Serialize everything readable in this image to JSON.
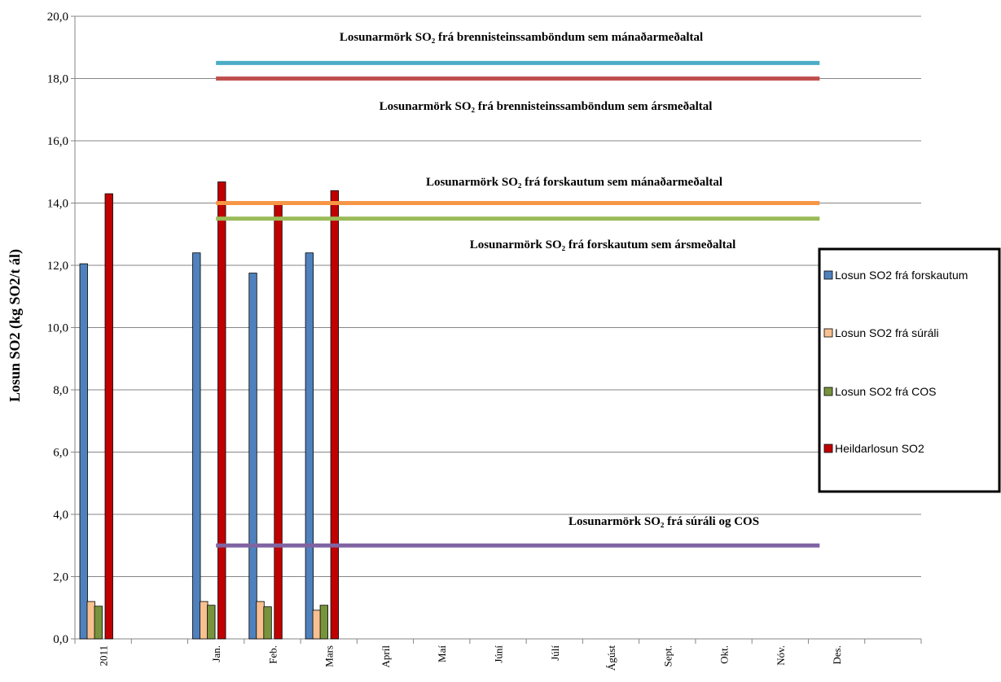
{
  "chart_data": {
    "type": "bar",
    "y_axis_label": "Losun SO2 (kg SO2/t ál)",
    "categories": [
      "2011",
      null,
      "Jan.",
      "Feb.",
      "Mars",
      "Apríl",
      "Maí",
      "Júní",
      "Júlí",
      "Ágúst",
      "Sept.",
      "Okt.",
      "Nóv.",
      "Des.",
      null
    ],
    "series": [
      {
        "name": "Losun SO2 frá forskautum",
        "color": "#4f81bd",
        "values": [
          12.05,
          null,
          12.4,
          11.75,
          12.4,
          null,
          null,
          null,
          null,
          null,
          null,
          null,
          null,
          null,
          null
        ]
      },
      {
        "name": "Losun SO2 frá súráli",
        "color": "#fac090",
        "values": [
          1.2,
          null,
          1.2,
          1.2,
          0.92,
          null,
          null,
          null,
          null,
          null,
          null,
          null,
          null,
          null,
          null
        ]
      },
      {
        "name": "Losun SO2 frá COS",
        "color": "#77933c",
        "values": [
          1.05,
          null,
          1.08,
          1.03,
          1.08,
          null,
          null,
          null,
          null,
          null,
          null,
          null,
          null,
          null,
          null
        ]
      },
      {
        "name": "Heildarlosun SO2",
        "color": "#c00000",
        "values": [
          14.3,
          null,
          14.68,
          13.95,
          14.4,
          null,
          null,
          null,
          null,
          null,
          null,
          null,
          null,
          null,
          null
        ]
      }
    ],
    "limit_lines": [
      {
        "label": "Losunarmörk SO₂ frá brennisteinssamböndum sem mánaðarmeðaltal",
        "value": 18.5,
        "color": "#4bacc6"
      },
      {
        "label": "Losunarmörk SO₂ frá brennisteinssamböndum sem ársmeðaltal",
        "value": 18.0,
        "color": "#c0504d"
      },
      {
        "label": "Losunarmörk SO₂ frá forskautum sem mánaðarmeðaltal",
        "value": 14.0,
        "color": "#f79646"
      },
      {
        "label": "Losunarmörk SO₂ frá forskautum sem ársmeðaltal",
        "value": 13.5,
        "color": "#9bbb59"
      },
      {
        "label": "Losunarmörk SO₂ frá súráli og COS",
        "value": 3.0,
        "color": "#8064a2"
      }
    ],
    "ylim": [
      0,
      20
    ],
    "yticks": [
      {
        "value": 0,
        "label": "0,0"
      },
      {
        "value": 2,
        "label": "2,0"
      },
      {
        "value": 4,
        "label": "4,0"
      },
      {
        "value": 6,
        "label": "6,0"
      },
      {
        "value": 8,
        "label": "8,0"
      },
      {
        "value": 10,
        "label": "10,0"
      },
      {
        "value": 12,
        "label": "12,0"
      },
      {
        "value": 14,
        "label": "14,0"
      },
      {
        "value": 16,
        "label": "16,0"
      },
      {
        "value": 18,
        "label": "18,0"
      },
      {
        "value": 20,
        "label": "20,0"
      }
    ],
    "grid": true,
    "legend": "right"
  }
}
